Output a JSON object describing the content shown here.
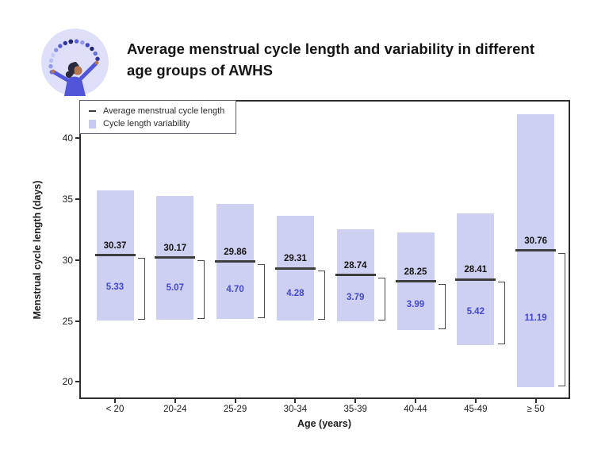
{
  "header": {
    "logo_icon": "woman-with-dots-arc-icon",
    "title_line1": "Average menstrual cycle length and variability in different",
    "title_line2": "age groups of AWHS"
  },
  "legend": {
    "items": [
      {
        "swatch": "dark-line",
        "label": "Average menstrual cycle length"
      },
      {
        "swatch": "lavender-box",
        "label": "Cycle length variability"
      }
    ]
  },
  "chart_data": {
    "type": "bar",
    "title": "Average menstrual cycle length and variability in different age groups of AWHS",
    "xlabel": "Age (years)",
    "ylabel": "Menstrual cycle length (days)",
    "categories": [
      "< 20",
      "20-24",
      "25-29",
      "30-34",
      "35-39",
      "40-44",
      "45-49",
      "≥ 50"
    ],
    "series": [
      {
        "name": "Average menstrual cycle length",
        "values": [
          30.37,
          30.17,
          29.86,
          29.31,
          28.74,
          28.25,
          28.41,
          30.76
        ]
      },
      {
        "name": "Cycle length variability",
        "values": [
          5.33,
          5.07,
          4.7,
          4.28,
          3.79,
          3.99,
          5.42,
          11.19
        ]
      }
    ],
    "bar_meaning": "bar spans average ± variability; bracket marks average minus variability range",
    "yticks": [
      20,
      25,
      30,
      35,
      40
    ],
    "ylim": [
      18.6,
      43.1
    ],
    "grid": false,
    "legend_position": "top-left"
  },
  "colors": {
    "bar_fill": "#cdd0f0",
    "variability_text": "#4347d2",
    "average_line": "#3d3d3d",
    "axis": "#2e2e2e",
    "bracket": "#4a4a4a",
    "logo_bg": "#dde0f8",
    "logo_figure": "#5156d8"
  }
}
